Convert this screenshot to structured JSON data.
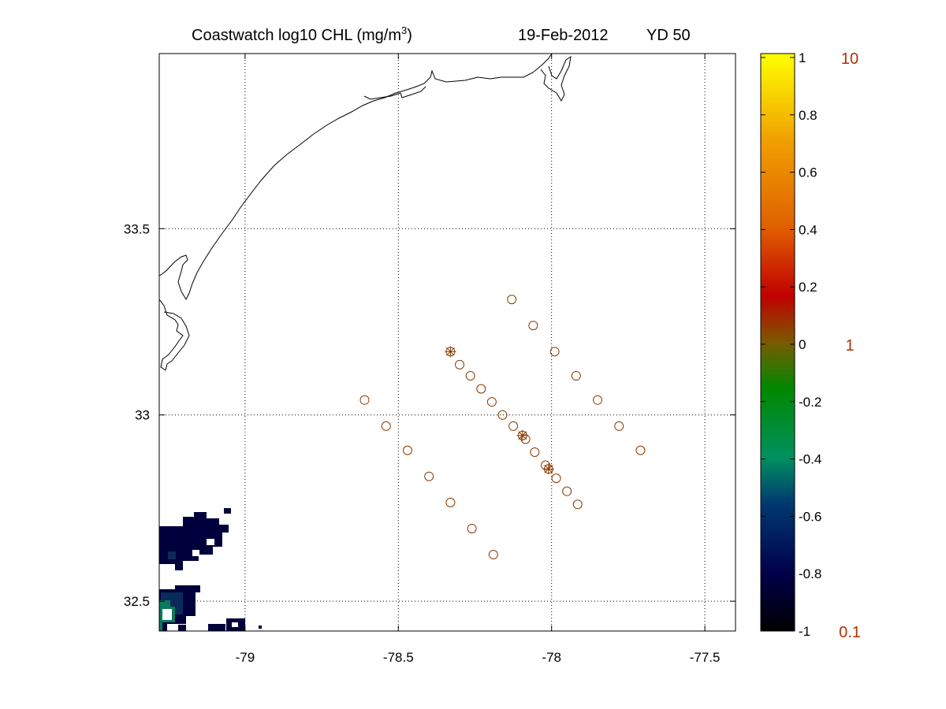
{
  "title": {
    "main_prefix": "Coastwatch  log10  CHL (mg/m",
    "main_exponent": "3",
    "main_suffix": ")",
    "date": "19-Feb-2012",
    "yearday": "YD 50"
  },
  "map": {
    "lon_range": [
      -79.28,
      -77.4
    ],
    "lat_range": [
      32.42,
      33.97
    ],
    "lon_ticks": [
      "-79",
      "-78.5",
      "-78",
      "-77.5"
    ],
    "lat_ticks": [
      "33.5",
      "33",
      "32.5"
    ],
    "grid": true,
    "coastline_color": "#000000"
  },
  "colorbar": {
    "range": [
      -1,
      1
    ],
    "tick_labels": [
      "1",
      "0.8",
      "0.6",
      "0.4",
      "0.2",
      "0",
      "-0.2",
      "-0.4",
      "-0.6",
      "-0.8",
      "-1"
    ],
    "concentration_labels": [
      "10",
      "1",
      "0.1"
    ],
    "concentration_label_color": "#b03000",
    "colormap_stops": [
      "#000000",
      "#00004a",
      "#003870",
      "#009060",
      "#008800",
      "#7a5a00",
      "#c00000",
      "#e06000",
      "#f0a000",
      "#ffff00"
    ]
  },
  "stations": {
    "marker": "circle",
    "marker_color": "#8b3a00",
    "points": [
      {
        "lon": -78.13,
        "lat": 33.31
      },
      {
        "lon": -78.06,
        "lat": 33.24
      },
      {
        "lon": -77.99,
        "lat": 33.17
      },
      {
        "lon": -77.92,
        "lat": 33.105
      },
      {
        "lon": -77.85,
        "lat": 33.04
      },
      {
        "lon": -77.78,
        "lat": 32.97
      },
      {
        "lon": -77.71,
        "lat": 32.905
      },
      {
        "lon": -78.61,
        "lat": 33.04
      },
      {
        "lon": -78.54,
        "lat": 32.97
      },
      {
        "lon": -78.47,
        "lat": 32.905
      },
      {
        "lon": -78.4,
        "lat": 32.835
      },
      {
        "lon": -78.33,
        "lat": 32.765
      },
      {
        "lon": -78.26,
        "lat": 32.695
      },
      {
        "lon": -78.19,
        "lat": 32.625
      },
      {
        "lon": -78.33,
        "lat": 33.17
      },
      {
        "lon": -78.3,
        "lat": 33.135
      },
      {
        "lon": -78.265,
        "lat": 33.105
      },
      {
        "lon": -78.23,
        "lat": 33.07
      },
      {
        "lon": -78.195,
        "lat": 33.035
      },
      {
        "lon": -78.16,
        "lat": 33.0
      },
      {
        "lon": -78.125,
        "lat": 32.97
      },
      {
        "lon": -78.095,
        "lat": 32.945
      },
      {
        "lon": -78.085,
        "lat": 32.935
      },
      {
        "lon": -78.055,
        "lat": 32.9
      },
      {
        "lon": -78.02,
        "lat": 32.865
      },
      {
        "lon": -78.01,
        "lat": 32.855
      },
      {
        "lon": -77.985,
        "lat": 32.83
      },
      {
        "lon": -77.95,
        "lat": 32.795
      },
      {
        "lon": -77.915,
        "lat": 32.76
      }
    ],
    "starred": [
      {
        "lon": -78.33,
        "lat": 33.17
      },
      {
        "lon": -78.095,
        "lat": 32.945
      },
      {
        "lon": -78.01,
        "lat": 32.855
      }
    ]
  },
  "chl_patches": {
    "low_color": "#00003c",
    "mid_color": "#0a2a5a",
    "high_color": "#0a7a5a"
  }
}
